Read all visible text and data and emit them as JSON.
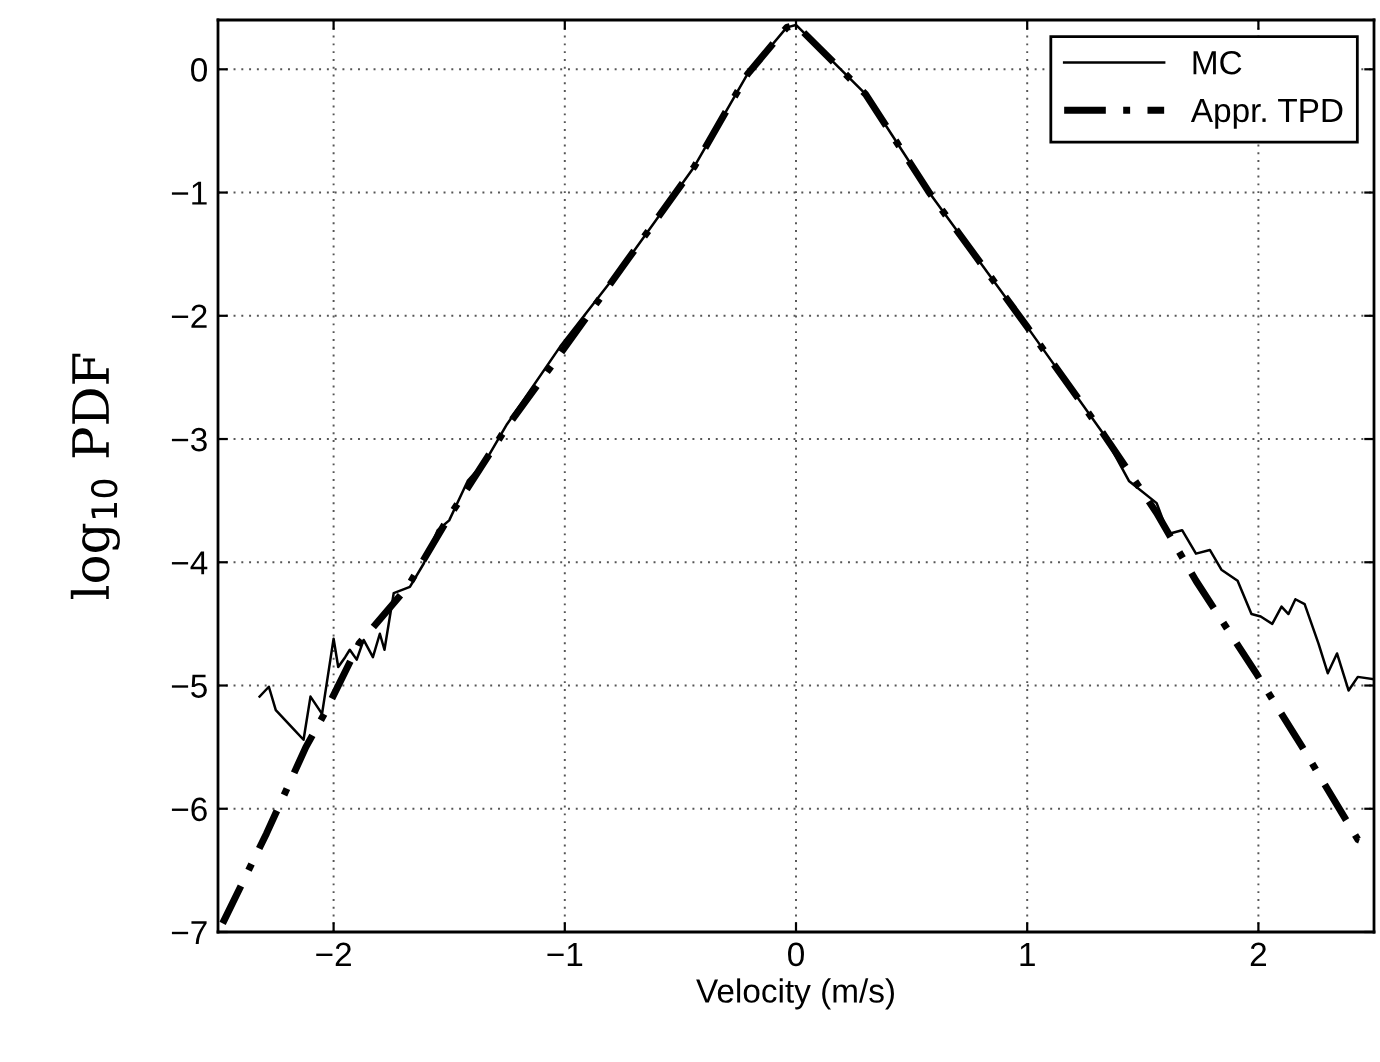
{
  "chart_data": {
    "type": "line",
    "xlabel": "Velocity (m/s)",
    "ylabel": "log$_{10}$ PDF",
    "xlim": [
      -2.5,
      2.5
    ],
    "ylim": [
      -7,
      0.4
    ],
    "xticks": [
      -2,
      -1,
      0,
      1,
      2
    ],
    "yticks": [
      -7,
      -6,
      -5,
      -4,
      -3,
      -2,
      -1,
      0
    ],
    "grid": true,
    "legend": "top right",
    "series": [
      {
        "name": "MC",
        "color": "#000000",
        "line_style": "solid",
        "x": [
          -2.32,
          -2.28,
          -2.25,
          -2.17,
          -2.13,
          -2.1,
          -2.05,
          -2.0,
          -1.98,
          -1.95,
          -1.93,
          -1.9,
          -1.87,
          -1.83,
          -1.8,
          -1.78,
          -1.74,
          -1.67,
          -1.61,
          -1.55,
          -1.5,
          -1.42,
          -1.34,
          -1.25,
          -1.02,
          -0.73,
          -0.44,
          -0.21,
          -0.04,
          0,
          0.3,
          0.58,
          1.0,
          1.33,
          1.44,
          1.56,
          1.61,
          1.67,
          1.73,
          1.79,
          1.84,
          1.91,
          1.97,
          2.01,
          2.06,
          2.1,
          2.13,
          2.16,
          2.2,
          2.26,
          2.3,
          2.34,
          2.39,
          2.43,
          2.5
        ],
        "values": [
          -5.09,
          -5.01,
          -5.2,
          -5.36,
          -5.44,
          -5.09,
          -5.23,
          -4.62,
          -4.85,
          -4.77,
          -4.71,
          -4.79,
          -4.63,
          -4.77,
          -4.58,
          -4.71,
          -4.25,
          -4.2,
          -4.01,
          -3.74,
          -3.66,
          -3.34,
          -3.17,
          -2.88,
          -2.25,
          -1.55,
          -0.79,
          -0.04,
          0.34,
          0.36,
          -0.2,
          -1.01,
          -2.09,
          -2.96,
          -3.34,
          -3.52,
          -3.77,
          -3.74,
          -3.93,
          -3.9,
          -4.06,
          -4.15,
          -4.42,
          -4.44,
          -4.5,
          -4.36,
          -4.42,
          -4.3,
          -4.34,
          -4.66,
          -4.9,
          -4.74,
          -5.04,
          -4.93,
          -4.95
        ]
      },
      {
        "name": "Appr. TPD",
        "color": "#000000",
        "line_style": "dashdot",
        "x": [
          -2.48,
          -2.29,
          -2.12,
          -2.04,
          -1.89,
          -1.68,
          -1.51,
          -1.25,
          -1.02,
          -0.73,
          -0.44,
          -0.21,
          -0.04,
          0,
          0.3,
          0.58,
          1.0,
          1.33,
          1.56,
          1.73,
          1.99,
          2.19,
          2.43,
          2.5
        ],
        "values": [
          -6.93,
          -6.2,
          -5.5,
          -5.23,
          -4.66,
          -4.2,
          -3.66,
          -2.9,
          -2.31,
          -1.55,
          -0.79,
          -0.04,
          0.34,
          0.36,
          -0.2,
          -1.01,
          -2.09,
          -2.96,
          -3.6,
          -4.15,
          -4.9,
          -5.5,
          -6.25,
          -6.3
        ]
      }
    ]
  }
}
